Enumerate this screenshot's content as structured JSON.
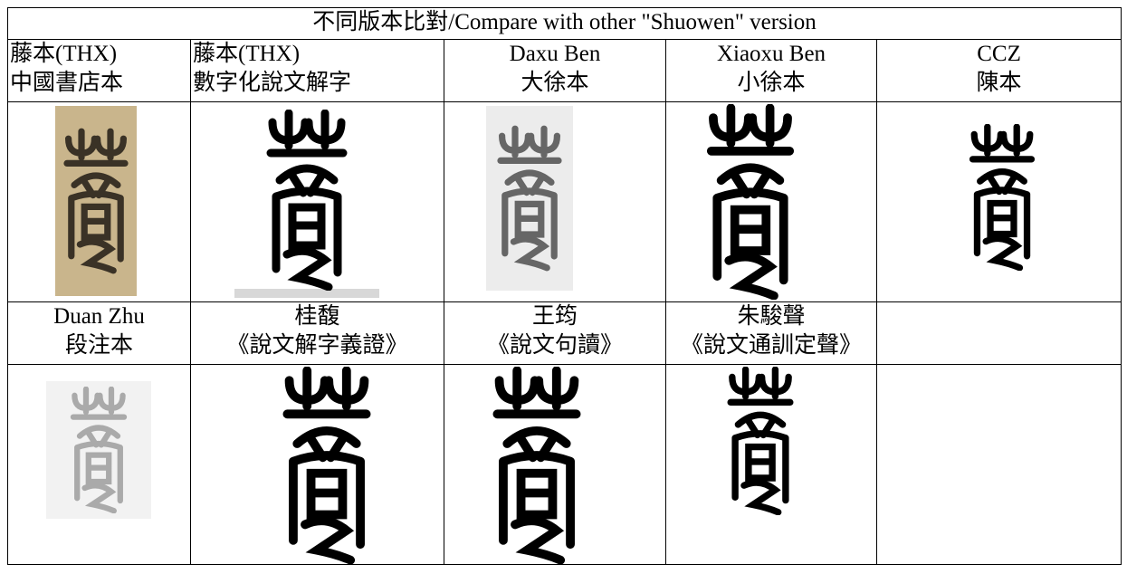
{
  "table": {
    "title": "不同版本比對/Compare with other \"Shuowen\" version",
    "sections": [
      {
        "headers": [
          [
            "藤本(THX)",
            "中國書店本"
          ],
          [
            "藤本(THX)",
            "數字化說文解字"
          ],
          [
            "Daxu Ben",
            "大徐本"
          ],
          [
            "Xiaoxu Ben",
            "小徐本"
          ],
          [
            "CCZ",
            "陳本"
          ]
        ]
      },
      {
        "headers": [
          [
            "Duan Zhu",
            "段注本"
          ],
          [
            "桂馥",
            "《說文解字義證》"
          ],
          [
            "王筠",
            "《說文句讀》"
          ],
          [
            "朱駿聲",
            "《說文通訓定聲》"
          ]
        ]
      }
    ]
  }
}
